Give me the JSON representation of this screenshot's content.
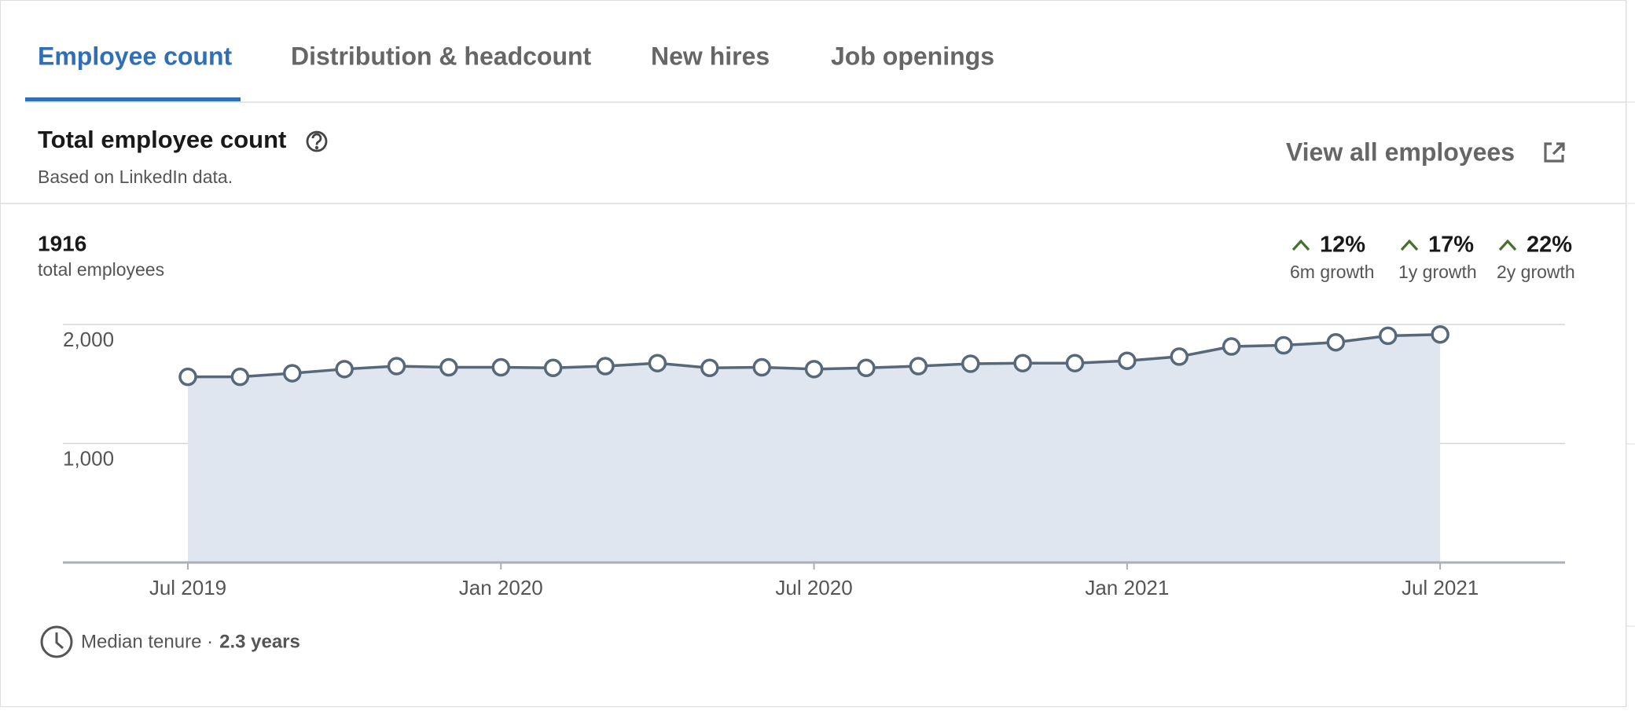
{
  "tabs": [
    "Employee count",
    "Distribution & headcount",
    "New hires",
    "Job openings"
  ],
  "header": {
    "title": "Total employee count",
    "subtitle": "Based on LinkedIn data.",
    "action": "View all employees"
  },
  "summary": {
    "value": "1916",
    "label": "total employees"
  },
  "growth": [
    {
      "value": "12%",
      "label": "6m growth"
    },
    {
      "value": "17%",
      "label": "1y growth"
    },
    {
      "value": "22%",
      "label": "2y growth"
    }
  ],
  "chart_data": {
    "type": "line",
    "fill": true,
    "categories": [
      "Jul 2019",
      null,
      null,
      null,
      null,
      null,
      "Jan 2020",
      null,
      null,
      null,
      null,
      null,
      "Jul 2020",
      null,
      null,
      null,
      null,
      null,
      "Jan 2021",
      null,
      null,
      null,
      null,
      null,
      "Jul 2021"
    ],
    "series": [
      {
        "color": "#56687a",
        "fill_color": "#dfe6ef",
        "values": [
          1560,
          1560,
          1590,
          1625,
          1650,
          1640,
          1640,
          1635,
          1650,
          1675,
          1635,
          1640,
          1625,
          1635,
          1650,
          1670,
          1675,
          1675,
          1695,
          1730,
          1815,
          1825,
          1850,
          1905,
          1916
        ]
      }
    ],
    "ylim": [
      0,
      2000
    ],
    "yticks": [
      {
        "value": 1000,
        "label": "1,000"
      },
      {
        "value": 2000,
        "label": "2,000"
      }
    ],
    "grid": true
  },
  "footer": {
    "label": "Median tenure ·",
    "value": "2.3 years"
  }
}
